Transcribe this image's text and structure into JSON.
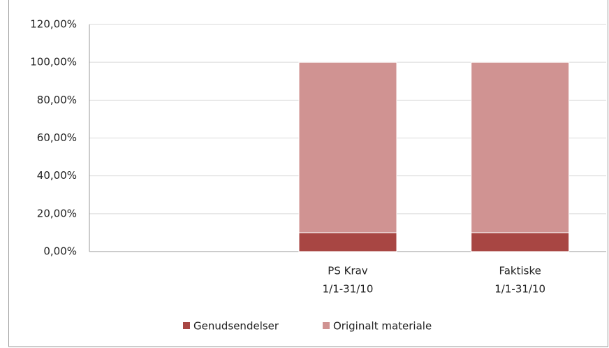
{
  "chart_data": {
    "type": "stacked_bar",
    "categories": [
      null,
      [
        "PS Krav",
        "1/1-31/10"
      ],
      [
        "Faktiske",
        "1/1-31/10"
      ]
    ],
    "series": [
      {
        "name": "Genudsendelser",
        "color": "#a84643",
        "values": [
          null,
          10,
          10
        ]
      },
      {
        "name": "Originalt materiale",
        "color": "#d09392",
        "values": [
          null,
          90,
          90
        ]
      }
    ],
    "ylim": [
      0,
      120
    ],
    "yticks": [
      {
        "value": 0,
        "label": "0,00%"
      },
      {
        "value": 20,
        "label": "20,00%"
      },
      {
        "value": 40,
        "label": "40,00%"
      },
      {
        "value": 60,
        "label": "60,00%"
      },
      {
        "value": 80,
        "label": "80,00%"
      },
      {
        "value": 100,
        "label": "100,00%"
      },
      {
        "value": 120,
        "label": "120,00%"
      }
    ],
    "grid": true,
    "legend": "bottom"
  }
}
